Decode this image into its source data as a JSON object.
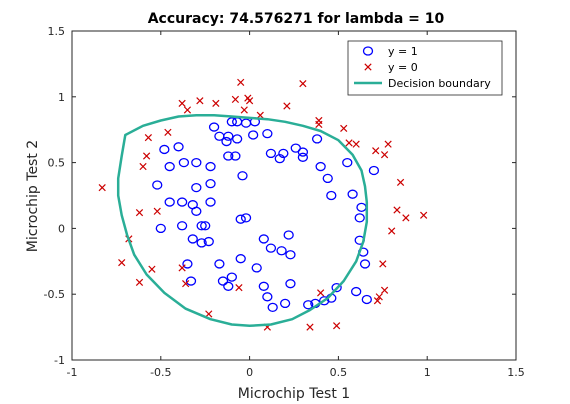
{
  "chart_data": {
    "type": "scatter",
    "title": "Accuracy: 74.576271 for lambda = 10",
    "xlabel": "Microchip Test 1",
    "ylabel": "Microchip Test 2",
    "xlim": [
      -1,
      1.5
    ],
    "ylim": [
      -1,
      1.5
    ],
    "xticks": [
      "-1",
      "-0.5",
      "0",
      "0.5",
      "1",
      "1.5"
    ],
    "yticks": [
      "-1",
      "-0.5",
      "0",
      "0.5",
      "1",
      "1.5"
    ],
    "grid": false,
    "legend_position": "top-right",
    "colors": {
      "positive": "#0000ff",
      "negative": "#cc0000",
      "boundary": "#2aae97",
      "axis": "#262626"
    },
    "series": [
      {
        "name": "y = 1",
        "marker": "circle",
        "points": [
          [
            -0.48,
            0.6
          ],
          [
            -0.4,
            0.62
          ],
          [
            -0.45,
            0.47
          ],
          [
            -0.37,
            0.5
          ],
          [
            -0.3,
            0.5
          ],
          [
            -0.52,
            0.33
          ],
          [
            -0.45,
            0.2
          ],
          [
            -0.38,
            0.2
          ],
          [
            -0.3,
            0.31
          ],
          [
            -0.32,
            0.18
          ],
          [
            -0.5,
            0.0
          ],
          [
            -0.38,
            0.02
          ],
          [
            -0.27,
            0.02
          ],
          [
            -0.22,
            0.47
          ],
          [
            -0.22,
            0.34
          ],
          [
            -0.2,
            0.77
          ],
          [
            -0.17,
            0.7
          ],
          [
            -0.12,
            0.7
          ],
          [
            -0.07,
            0.81
          ],
          [
            -0.1,
            0.81
          ],
          [
            -0.13,
            0.66
          ],
          [
            -0.12,
            0.55
          ],
          [
            -0.07,
            0.68
          ],
          [
            -0.08,
            0.55
          ],
          [
            -0.02,
            0.8
          ],
          [
            -0.04,
            0.4
          ],
          [
            0.02,
            0.71
          ],
          [
            0.03,
            0.81
          ],
          [
            0.1,
            0.72
          ],
          [
            0.12,
            0.57
          ],
          [
            0.17,
            0.53
          ],
          [
            0.19,
            0.57
          ],
          [
            0.26,
            0.61
          ],
          [
            0.3,
            0.58
          ],
          [
            0.3,
            0.54
          ],
          [
            0.38,
            0.68
          ],
          [
            0.4,
            0.47
          ],
          [
            0.44,
            0.38
          ],
          [
            0.46,
            0.25
          ],
          [
            0.55,
            0.5
          ],
          [
            0.58,
            0.26
          ],
          [
            0.63,
            0.16
          ],
          [
            0.62,
            0.08
          ],
          [
            0.7,
            0.44
          ],
          [
            0.62,
            -0.09
          ],
          [
            0.65,
            -0.27
          ],
          [
            0.64,
            -0.18
          ],
          [
            0.66,
            -0.54
          ],
          [
            0.6,
            -0.48
          ],
          [
            0.49,
            -0.45
          ],
          [
            0.46,
            -0.53
          ],
          [
            0.42,
            -0.55
          ],
          [
            0.37,
            -0.57
          ],
          [
            0.33,
            -0.58
          ],
          [
            0.23,
            -0.42
          ],
          [
            0.2,
            -0.57
          ],
          [
            0.13,
            -0.6
          ],
          [
            0.1,
            -0.52
          ],
          [
            0.08,
            -0.44
          ],
          [
            0.04,
            -0.3
          ],
          [
            -0.02,
            0.08
          ],
          [
            -0.05,
            0.07
          ],
          [
            -0.22,
            0.2
          ],
          [
            -0.25,
            0.02
          ],
          [
            -0.27,
            -0.11
          ],
          [
            -0.32,
            -0.08
          ],
          [
            -0.35,
            -0.27
          ],
          [
            -0.33,
            -0.4
          ],
          [
            -0.23,
            -0.1
          ],
          [
            -0.17,
            -0.27
          ],
          [
            -0.15,
            -0.4
          ],
          [
            -0.12,
            -0.44
          ],
          [
            -0.1,
            -0.37
          ],
          [
            -0.05,
            -0.23
          ],
          [
            0.08,
            -0.08
          ],
          [
            0.12,
            -0.15
          ],
          [
            0.18,
            -0.17
          ],
          [
            0.22,
            -0.05
          ],
          [
            0.23,
            -0.2
          ],
          [
            -0.3,
            0.13
          ]
        ]
      },
      {
        "name": "y = 0",
        "marker": "x",
        "points": [
          [
            -0.05,
            1.11
          ],
          [
            0.3,
            1.1
          ],
          [
            -0.01,
            0.99
          ],
          [
            -0.08,
            0.98
          ],
          [
            0.0,
            0.97
          ],
          [
            -0.28,
            0.97
          ],
          [
            -0.38,
            0.95
          ],
          [
            -0.35,
            0.9
          ],
          [
            -0.03,
            0.9
          ],
          [
            0.21,
            0.93
          ],
          [
            0.06,
            0.86
          ],
          [
            0.39,
            0.79
          ],
          [
            0.53,
            0.76
          ],
          [
            0.56,
            0.65
          ],
          [
            -0.57,
            0.69
          ],
          [
            -0.58,
            0.55
          ],
          [
            -0.6,
            0.47
          ],
          [
            -0.46,
            0.73
          ],
          [
            -0.52,
            0.13
          ],
          [
            -0.83,
            0.31
          ],
          [
            -0.62,
            0.12
          ],
          [
            -0.68,
            -0.08
          ],
          [
            -0.72,
            -0.26
          ],
          [
            -0.62,
            -0.41
          ],
          [
            -0.55,
            -0.31
          ],
          [
            -0.36,
            -0.42
          ],
          [
            -0.38,
            -0.3
          ],
          [
            -0.23,
            -0.65
          ],
          [
            -0.06,
            -0.45
          ],
          [
            0.1,
            -0.75
          ],
          [
            0.34,
            -0.75
          ],
          [
            0.49,
            -0.74
          ],
          [
            0.4,
            -0.49
          ],
          [
            0.72,
            -0.55
          ],
          [
            0.73,
            -0.52
          ],
          [
            0.76,
            -0.47
          ],
          [
            0.75,
            -0.27
          ],
          [
            0.8,
            -0.02
          ],
          [
            0.83,
            0.14
          ],
          [
            0.88,
            0.08
          ],
          [
            0.98,
            0.1
          ],
          [
            0.85,
            0.35
          ],
          [
            0.71,
            0.59
          ],
          [
            0.76,
            0.56
          ],
          [
            0.78,
            0.64
          ],
          [
            0.6,
            0.64
          ],
          [
            0.39,
            0.82
          ],
          [
            -0.19,
            0.95
          ]
        ]
      },
      {
        "name": "Decision boundary",
        "marker": "line",
        "points": [
          [
            -0.7,
            0.71
          ],
          [
            -0.6,
            0.78
          ],
          [
            -0.5,
            0.82
          ],
          [
            -0.4,
            0.85
          ],
          [
            -0.3,
            0.86
          ],
          [
            -0.2,
            0.86
          ],
          [
            -0.1,
            0.85
          ],
          [
            0.0,
            0.84
          ],
          [
            0.1,
            0.83
          ],
          [
            0.2,
            0.81
          ],
          [
            0.3,
            0.78
          ],
          [
            0.4,
            0.74
          ],
          [
            0.5,
            0.67
          ],
          [
            0.58,
            0.56
          ],
          [
            0.63,
            0.44
          ],
          [
            0.65,
            0.32
          ],
          [
            0.66,
            0.2
          ],
          [
            0.66,
            0.05
          ],
          [
            0.64,
            -0.1
          ],
          [
            0.6,
            -0.25
          ],
          [
            0.53,
            -0.4
          ],
          [
            0.44,
            -0.53
          ],
          [
            0.34,
            -0.62
          ],
          [
            0.24,
            -0.69
          ],
          [
            0.12,
            -0.73
          ],
          [
            0.0,
            -0.74
          ],
          [
            -0.1,
            -0.73
          ],
          [
            -0.22,
            -0.69
          ],
          [
            -0.36,
            -0.61
          ],
          [
            -0.48,
            -0.49
          ],
          [
            -0.58,
            -0.35
          ],
          [
            -0.65,
            -0.2
          ],
          [
            -0.69,
            -0.05
          ],
          [
            -0.72,
            0.1
          ],
          [
            -0.74,
            0.25
          ],
          [
            -0.74,
            0.38
          ],
          [
            -0.72,
            0.55
          ],
          [
            -0.7,
            0.71
          ]
        ]
      }
    ]
  }
}
